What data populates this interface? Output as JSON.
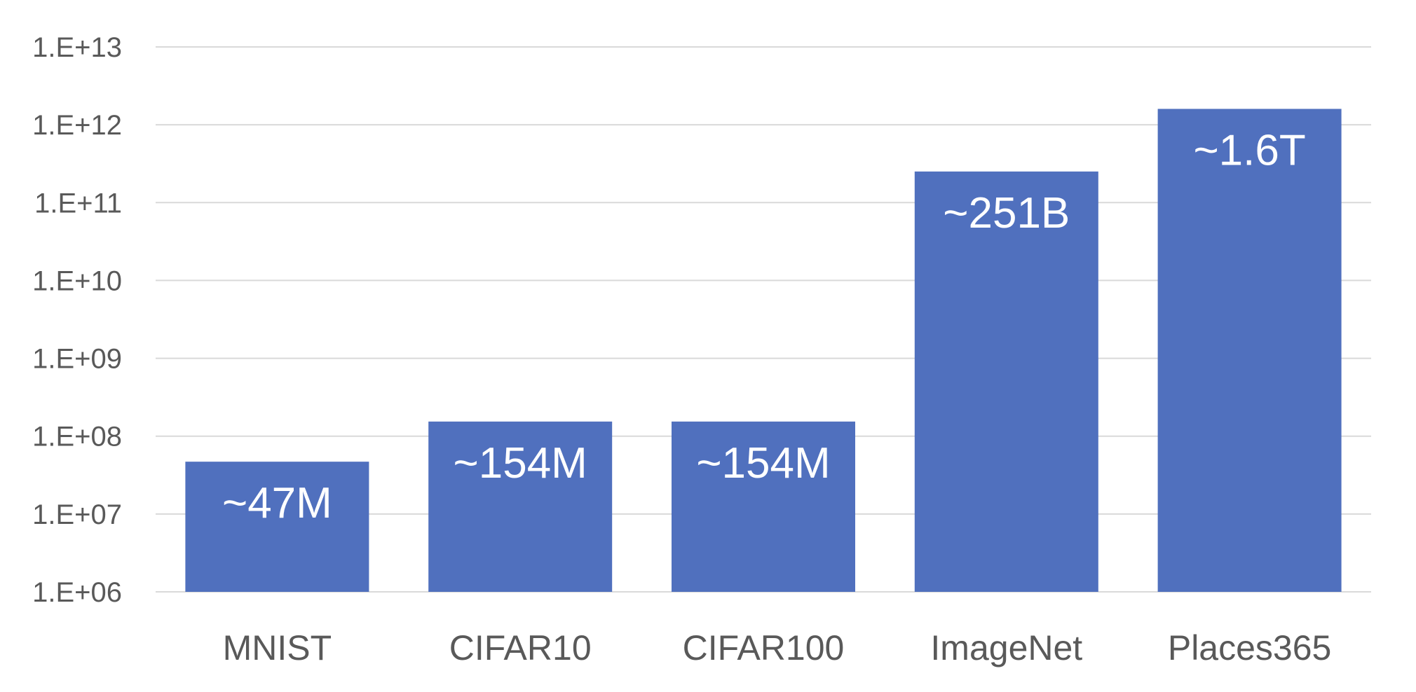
{
  "chart_data": {
    "type": "bar",
    "title": "",
    "xlabel": "",
    "ylabel": "",
    "scale": "log",
    "ylim": [
      1000000,
      10000000000000
    ],
    "grid": true,
    "legend": "none",
    "bar_color": "#5070BE",
    "y_ticks": [
      "1.E+06",
      "1.E+07",
      "1.E+08",
      "1.E+09",
      "1.E+10",
      "1.E+11",
      "1.E+12",
      "1.E+13"
    ],
    "categories": [
      "MNIST",
      "CIFAR10",
      "CIFAR100",
      "ImageNet",
      "Places365"
    ],
    "values": [
      47000000,
      154000000,
      154000000,
      251000000000,
      1600000000000
    ],
    "data_labels": [
      "~47M",
      "~154M",
      "~154M",
      "~251B",
      "~1.6T"
    ]
  }
}
